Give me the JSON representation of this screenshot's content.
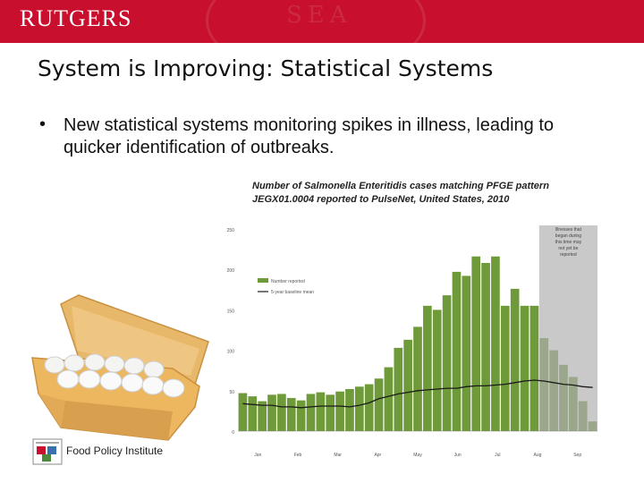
{
  "header": {
    "brand": "RUTGERS",
    "seal_text": "SEA"
  },
  "slide": {
    "title": "System is Improving: Statistical Systems",
    "bullet": "New statistical systems monitoring spikes in illness, leading to quicker identification of outbreaks."
  },
  "footer": {
    "text": "Food Policy Institute"
  },
  "colors": {
    "brand_red": "#c8102e",
    "bar_green": "#6f9a3a",
    "shaded_bar": "#9aa78a",
    "shade_bg": "#c9c9c9",
    "line": "#1a1a1a"
  },
  "chart_data": {
    "type": "bar",
    "title": "Number of Salmonella Enteritidis cases matching PFGE pattern JEGX01.0004 reported to PulseNet, United States, 2010",
    "ylim": [
      0,
      250
    ],
    "yticks": [
      0,
      50,
      100,
      150,
      200,
      250
    ],
    "month_labels": [
      "Jan",
      "Feb",
      "Mar",
      "Apr",
      "May",
      "Jun",
      "Jul",
      "Aug",
      "Sep"
    ],
    "legend": [
      "Number reported",
      "5-year baseline mean"
    ],
    "annotation": "Illnesses that began during this time may not yet be reported",
    "values": [
      47,
      43,
      37,
      45,
      46,
      41,
      38,
      46,
      48,
      45,
      49,
      52,
      55,
      58,
      65,
      79,
      103,
      113,
      129,
      155,
      150,
      168,
      197,
      192,
      216,
      208,
      216,
      155,
      176,
      155,
      155,
      115,
      100,
      82,
      67,
      37,
      12
    ],
    "baseline": [
      34,
      33,
      32,
      32,
      30,
      30,
      29,
      30,
      31,
      31,
      31,
      30,
      32,
      35,
      40,
      43,
      46,
      48,
      50,
      51,
      52,
      53,
      53,
      55,
      56,
      56,
      57,
      58,
      60,
      62,
      63,
      62,
      60,
      58,
      57,
      55,
      54
    ],
    "shaded_from_index": 31
  }
}
